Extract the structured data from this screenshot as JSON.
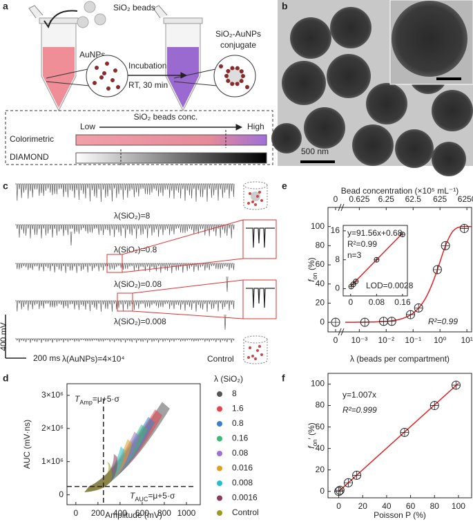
{
  "figure": {
    "a": {
      "label": "a",
      "beads": "SiO₂ beads",
      "aunps": "AuNPs",
      "incubation": "Incubation",
      "condition": "RT, 30 min",
      "conjugate": [
        "SiO₂-AuNPs",
        "conjugate"
      ],
      "scale_title": "SiO₂ beads conc.",
      "low": "Low",
      "high": "High",
      "rows": [
        "Colorimetric",
        "DIAMOND"
      ]
    },
    "b": {
      "label": "b",
      "scale_bar": "500 nm"
    },
    "c": {
      "label": "c",
      "traces": [
        "λ(SiO₂)=8",
        "λ(SiO₂)=0.8",
        "λ(SiO₂)=0.08",
        "λ(SiO₂)=0.008",
        "λ(AuNPs)=4×10⁴"
      ],
      "control": "Control",
      "v_scale": "400 mV",
      "t_scale": "200 ms"
    },
    "d": {
      "label": "d",
      "xlabel": "Amplitude (mV)",
      "ylabel": "AUC (mV·ns)",
      "xlim": [
        -80,
        1125
      ],
      "xticks": [
        0,
        200,
        400,
        600,
        800,
        1000
      ],
      "ylim": [
        -300000,
        3350000
      ],
      "yticks": [
        0,
        {
          "value": 1000000,
          "label": "1×10⁶"
        },
        {
          "value": 2000000,
          "label": "2×10⁶"
        },
        {
          "value": 3000000,
          "label": "3×10⁶"
        }
      ],
      "thresholds": {
        "amp": 250,
        "auc": 250000
      },
      "t_amp": {
        "symbol": "T",
        "sub": "Amp",
        "rest": "=μ+5·σ"
      },
      "t_auc": {
        "symbol": "T",
        "sub": "AUC",
        "rest": "=μ+5·σ"
      },
      "legend_title": "λ (SiO₂)",
      "series": [
        {
          "name": "8",
          "color": "#555555"
        },
        {
          "name": "1.6",
          "color": "#e8424a"
        },
        {
          "name": "0.8",
          "color": "#3a7fcc"
        },
        {
          "name": "0.16",
          "color": "#3cb878"
        },
        {
          "name": "0.08",
          "color": "#a070d0"
        },
        {
          "name": "0.016",
          "color": "#e0a020"
        },
        {
          "name": "0.008",
          "color": "#20c0d0"
        },
        {
          "name": "0.0016",
          "color": "#8a3a5a"
        },
        {
          "name": "Control",
          "color": "#9a9a20"
        }
      ]
    },
    "e": {
      "label": "e",
      "type": "scatter",
      "xlabel": "λ (beads per compartment)",
      "ylabel": {
        "symbol": "f",
        "sub": "on",
        "rest": " (%)"
      },
      "x2label": "Bead concentration (×10⁵ mL⁻¹)",
      "xscale": "log",
      "xlim": [
        0.0003,
        15
      ],
      "xticks": [
        0,
        {
          "value": 0.001,
          "label": "10⁻³"
        },
        {
          "value": 0.01,
          "label": "10⁻²"
        },
        {
          "value": 0.1,
          "label": "10⁻¹"
        },
        {
          "value": 1,
          "label": "10⁰"
        },
        {
          "value": 10,
          "label": "10¹"
        }
      ],
      "x2lim": [
        0.1875,
        9375
      ],
      "x2ticks": [
        0,
        0.625,
        6.25,
        62.5,
        625,
        6250
      ],
      "ylim": [
        -10,
        120
      ],
      "yticks": [
        0,
        20,
        40,
        60,
        80,
        100
      ],
      "x": [
        0,
        0.0016,
        0.008,
        0.016,
        0.08,
        0.16,
        0.8,
        1.6,
        8
      ],
      "values": [
        0,
        0,
        1,
        1,
        8,
        15,
        55,
        80,
        98
      ],
      "fit_color": "#e02020",
      "fit_label": "R²=0.99",
      "inset": {
        "xlim": [
          -0.023,
          0.175
        ],
        "xticks": [
          0,
          0.08,
          0.16
        ],
        "ylim": [
          -2,
          17.5
        ],
        "yticks": [
          0,
          8,
          16
        ],
        "x": [
          0.0016,
          0.008,
          0.016,
          0.08,
          0.16
        ],
        "values": [
          0.6,
          1.2,
          2,
          8,
          15
        ],
        "slope": 91.56,
        "intercept": 0.68,
        "equation": "y=91.56x+0.68",
        "r2": "R²=0.99",
        "n": "n=3",
        "lod": "LOD=0.0028"
      }
    },
    "f": {
      "label": "f",
      "type": "scatter",
      "xlabel": "Poisson P (%)",
      "ylabel": {
        "symbol": "f",
        "sub": "on",
        "rest": "′ (%)"
      },
      "xlim": [
        -9,
        111
      ],
      "xticks": [
        0,
        20,
        40,
        60,
        80,
        100
      ],
      "ylim": [
        -6,
        110
      ],
      "yticks": [
        0,
        20,
        40,
        60,
        80,
        100
      ],
      "x": [
        0,
        1,
        8,
        15,
        55,
        80,
        98
      ],
      "values": [
        0,
        1,
        8,
        15,
        55,
        80,
        99
      ],
      "slope": 1.007,
      "fit_color": "#e02020",
      "equation": "y=1.007x",
      "r2": "R²=0.999"
    }
  }
}
